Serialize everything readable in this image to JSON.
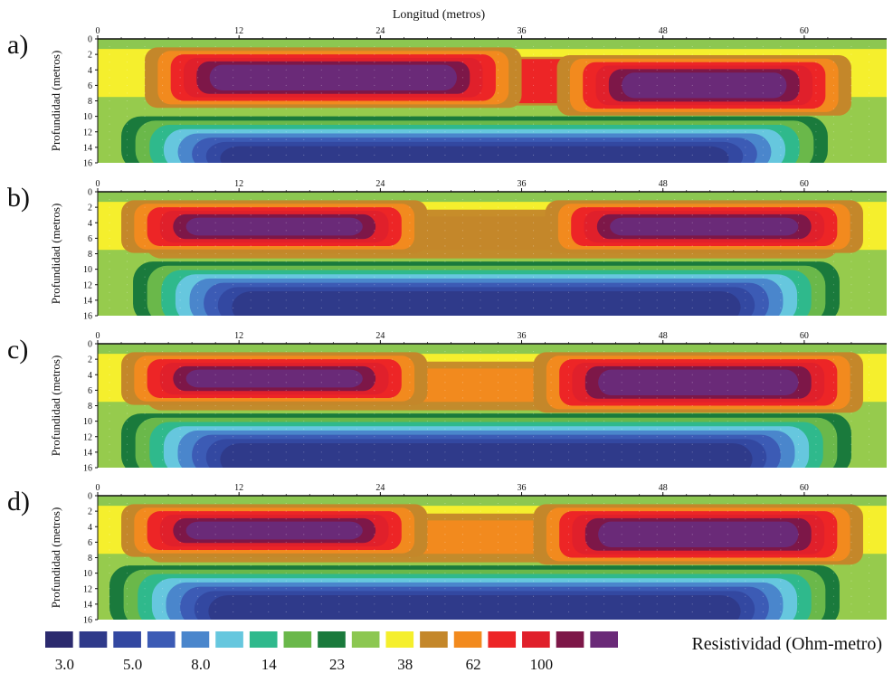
{
  "chart_data": {
    "type": "heatmap",
    "x_axis_title": "Longitud (metros)",
    "y_axis_title": "Profundidad (metros)",
    "x_ticks": [
      0,
      12,
      24,
      36,
      48,
      60
    ],
    "y_ticks": [
      0,
      2,
      4,
      6,
      8,
      10,
      12,
      14,
      16
    ],
    "xlim": [
      0,
      67
    ],
    "ylim": [
      0,
      16
    ],
    "colorbar": {
      "title": "Resistividad (Ohm-metro)",
      "colors": [
        "#2b2a6e",
        "#2f3a8a",
        "#3348a1",
        "#3c5bb5",
        "#4a86cc",
        "#66c7de",
        "#2fb98c",
        "#6ab84a",
        "#1a7a3c",
        "#8cc751",
        "#f5ef2d",
        "#c4872a",
        "#f28a1e",
        "#ed2526",
        "#e0202b",
        "#7d1748",
        "#6a2a78"
      ],
      "labels": [
        "3.0",
        "5.0",
        "8.0",
        "14",
        "23",
        "38",
        "62",
        "100"
      ]
    },
    "panels": [
      {
        "label": "a)",
        "bodies": [
          {
            "kind": "conductive",
            "x_range": [
              8,
              56
            ],
            "depth_range": [
              10,
              16
            ],
            "center_value": 3.0
          },
          {
            "kind": "resistive",
            "x_range": [
              7,
              33
            ],
            "depth_range": [
              2,
              8
            ],
            "center_value": 140
          },
          {
            "kind": "resistive",
            "x_range": [
              42,
              61
            ],
            "depth_range": [
              3,
              9
            ],
            "center_value": 140
          }
        ]
      },
      {
        "label": "b)",
        "bodies": [
          {
            "kind": "conductive",
            "x_range": [
              9,
              57
            ],
            "depth_range": [
              9,
              16
            ],
            "center_value": 3.0
          },
          {
            "kind": "resistive",
            "x_range": [
              5,
              25
            ],
            "depth_range": [
              2,
              7
            ],
            "center_value": 140
          },
          {
            "kind": "resistive",
            "x_range": [
              41,
              62
            ],
            "depth_range": [
              2,
              7
            ],
            "center_value": 140
          }
        ]
      },
      {
        "label": "c)",
        "bodies": [
          {
            "kind": "conductive",
            "x_range": [
              8,
              58
            ],
            "depth_range": [
              9,
              16
            ],
            "center_value": 3.0
          },
          {
            "kind": "resistive",
            "x_range": [
              5,
              25
            ],
            "depth_range": [
              2,
              7
            ],
            "center_value": 140
          },
          {
            "kind": "resistive",
            "x_range": [
              40,
              62
            ],
            "depth_range": [
              2,
              8
            ],
            "center_value": 140
          }
        ]
      },
      {
        "label": "d)",
        "bodies": [
          {
            "kind": "conductive",
            "x_range": [
              7,
              57
            ],
            "depth_range": [
              9,
              16
            ],
            "center_value": 3.0
          },
          {
            "kind": "resistive",
            "x_range": [
              5,
              25
            ],
            "depth_range": [
              2,
              7
            ],
            "center_value": 140
          },
          {
            "kind": "resistive",
            "x_range": [
              40,
              62
            ],
            "depth_range": [
              2,
              8
            ],
            "center_value": 140
          }
        ]
      }
    ]
  }
}
